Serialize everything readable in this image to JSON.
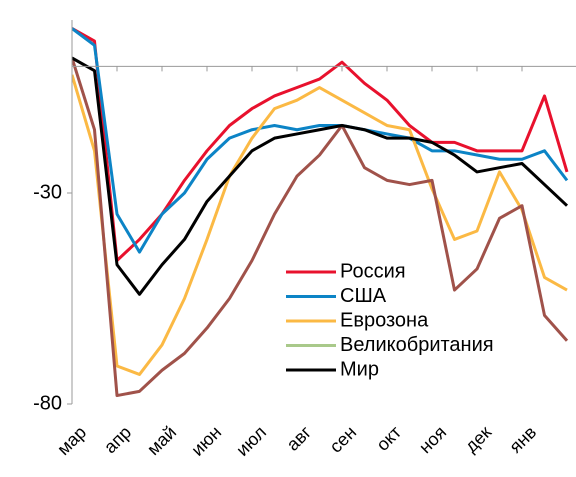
{
  "chart_data": {
    "type": "line",
    "categories": [
      "мар",
      null,
      "апр",
      null,
      "май",
      null,
      "июн",
      null,
      "июл",
      null,
      "авг",
      null,
      "сен",
      null,
      "окт",
      null,
      "ноя",
      null,
      "дек",
      null,
      "янв",
      null,
      null
    ],
    "series": [
      {
        "name": "Россия",
        "color": "#e8112d",
        "values": [
          9,
          6,
          -46,
          -41,
          -35,
          -27,
          -20,
          -14,
          -10,
          -7,
          -5,
          -3,
          1,
          -4,
          -8,
          -14,
          -18,
          -18,
          -20,
          -20,
          -20,
          -7,
          -25
        ]
      },
      {
        "name": "США",
        "color": "#0c84c6",
        "values": [
          9,
          5,
          -35,
          -44,
          -35,
          -30,
          -22,
          -17,
          -15,
          -14,
          -15,
          -14,
          -14,
          -15,
          -16,
          -17,
          -20,
          -20,
          -21,
          -22,
          -22,
          -20,
          -27
        ]
      },
      {
        "name": "Еврозона",
        "color": "#fbb944",
        "values": [
          -2,
          -20,
          -71,
          -73,
          -66,
          -55,
          -41,
          -26,
          -17,
          -10,
          -8,
          -5,
          -8,
          -11,
          -14,
          -15,
          -29,
          -41,
          -39,
          -25,
          -34,
          -50,
          -53
        ]
      },
      {
        "name": "Великобритания",
        "color": "#a0524a",
        "legend_color": "#a9c98a",
        "values": [
          2,
          -15,
          -78,
          -77,
          -72,
          -68,
          -62,
          -55,
          -46,
          -35,
          -26,
          -21,
          -14,
          -24,
          -27,
          -28,
          -27,
          -53,
          -48,
          -36,
          -33,
          -59,
          -65
        ]
      },
      {
        "name": "Мир",
        "color": "#000000",
        "values": [
          2,
          -1,
          -47,
          -54,
          -47,
          -41,
          -32,
          -26,
          -20,
          -17,
          -16,
          -15,
          -14,
          -15,
          -17,
          -17,
          -18,
          -21,
          -25,
          -24,
          -23,
          -28,
          -33
        ]
      }
    ],
    "ylim": [
      -80,
      11
    ],
    "yticks": [
      -80,
      -30
    ],
    "grid": false
  }
}
